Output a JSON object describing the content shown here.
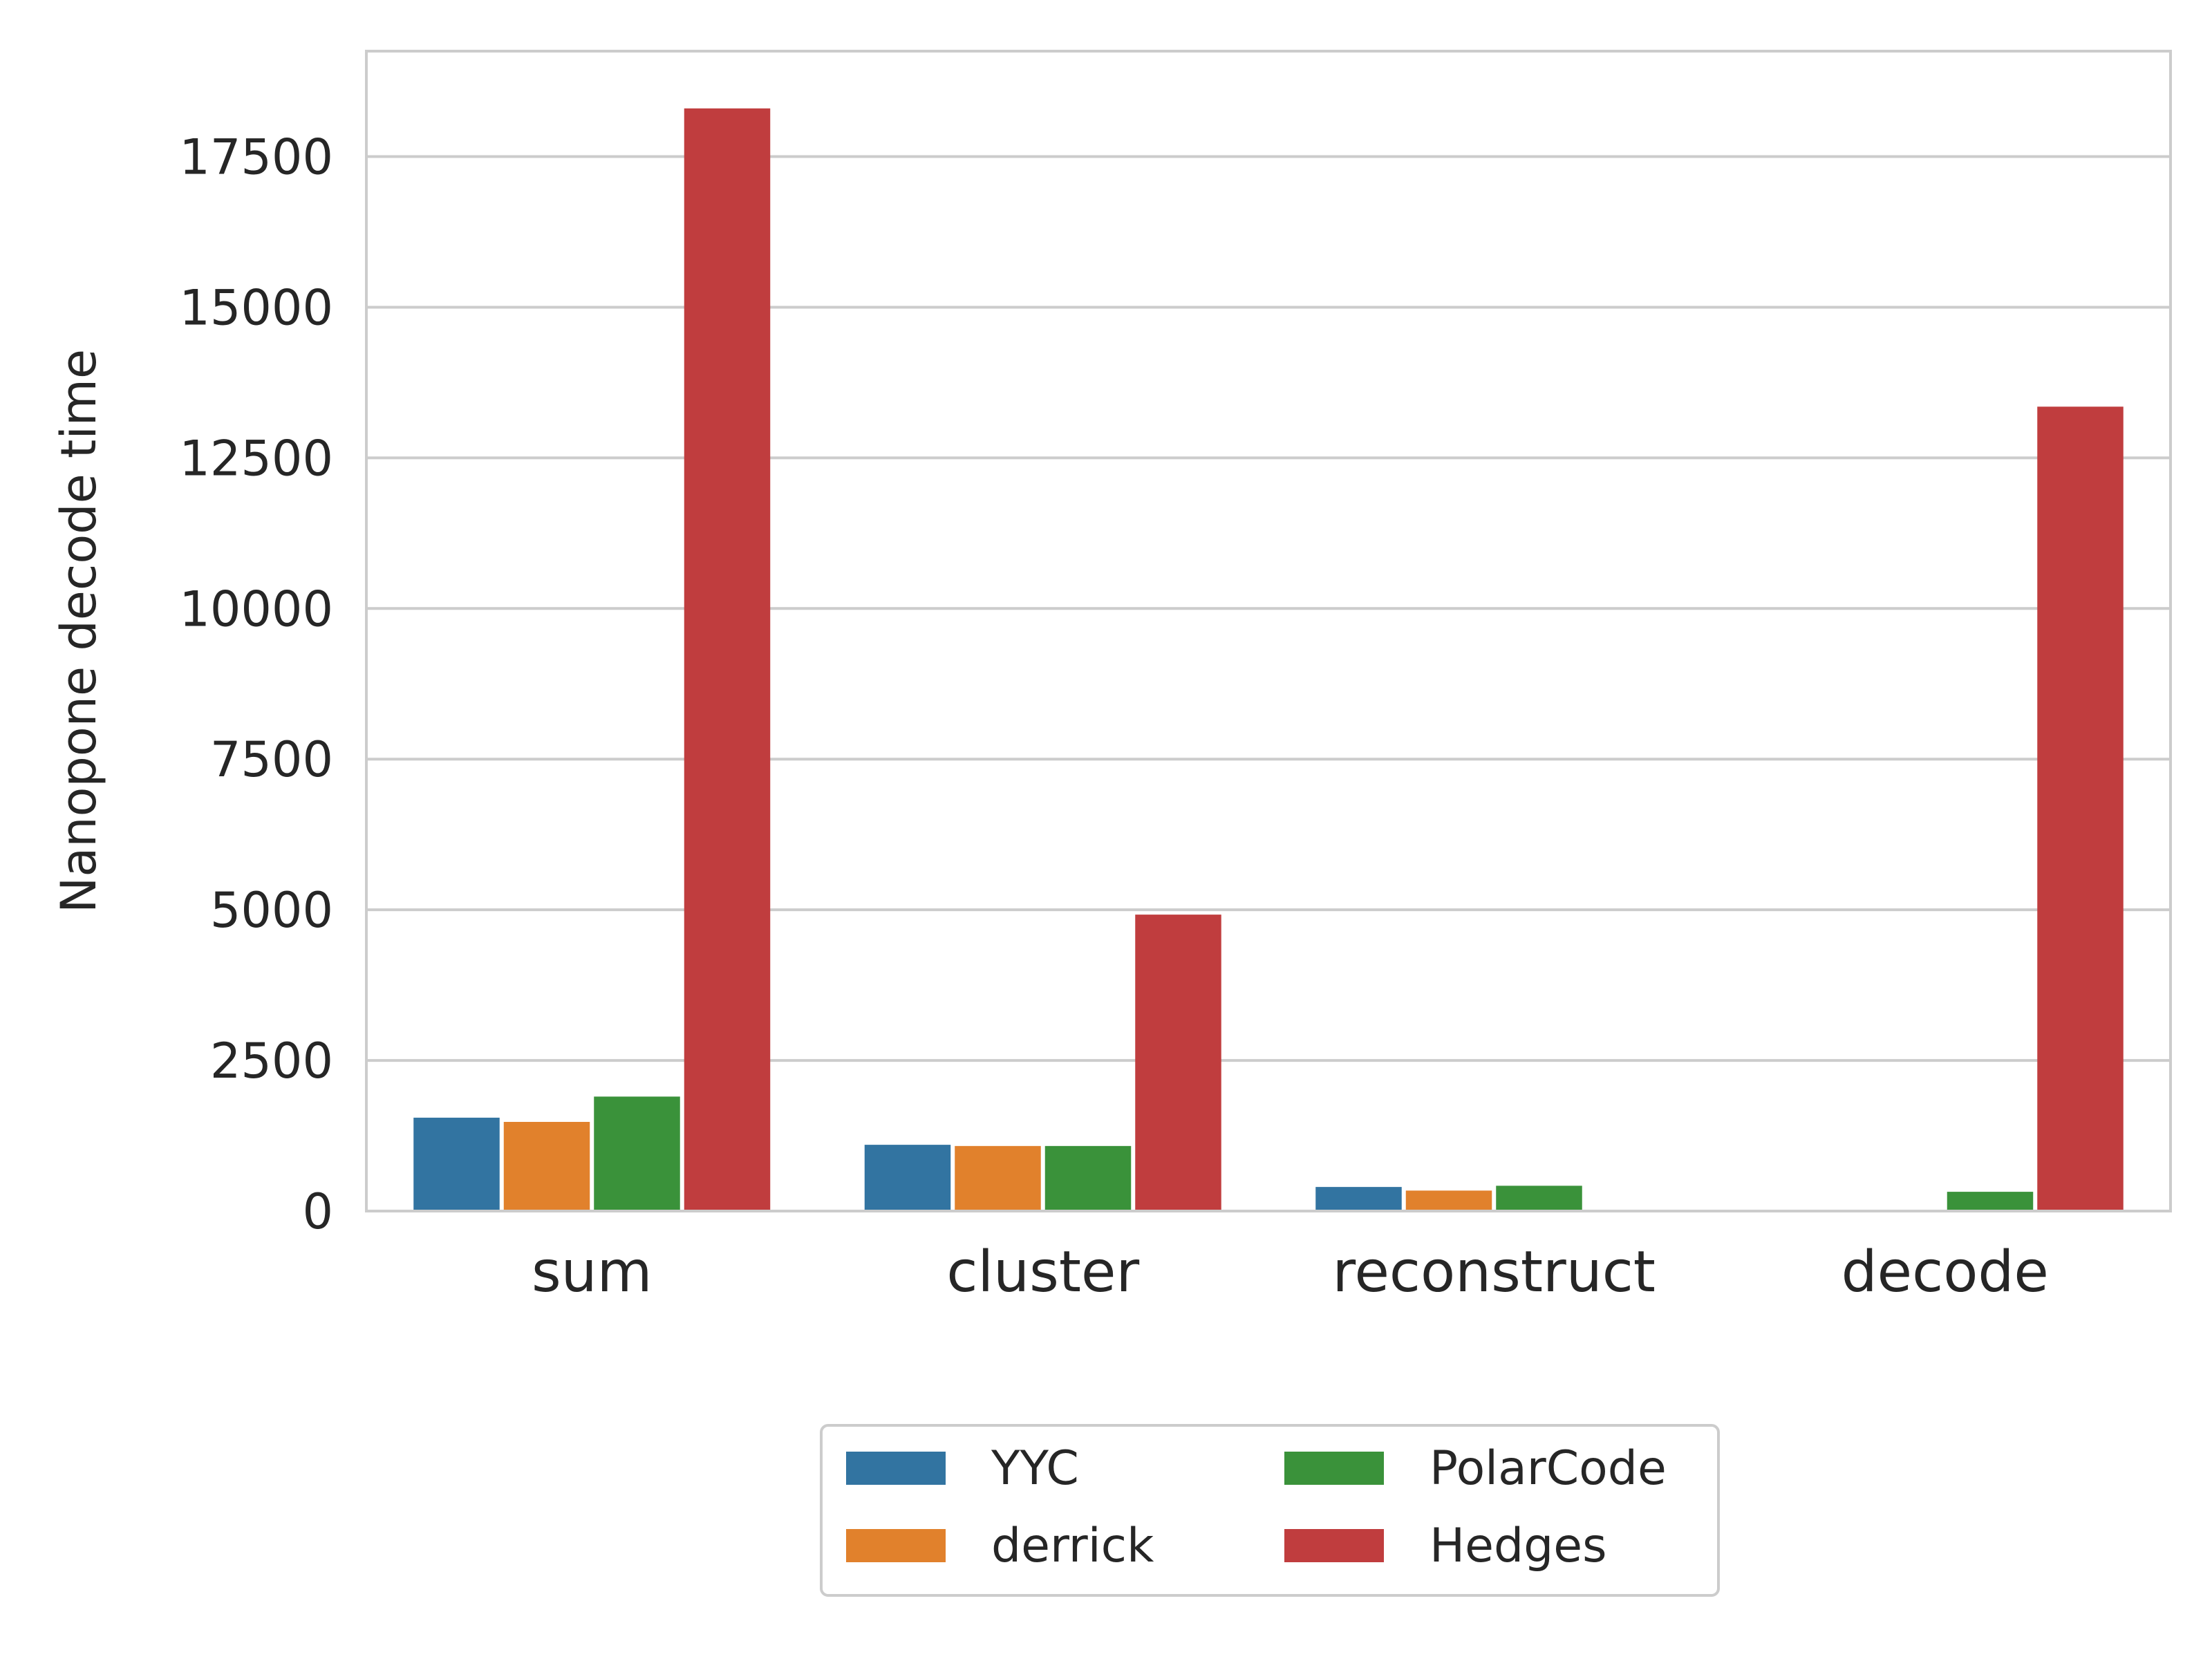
{
  "chart_data": {
    "type": "bar",
    "title": "",
    "xlabel": "",
    "ylabel": "Nanopone decode time",
    "categories": [
      "sum",
      "cluster",
      "reconstruct",
      "decode"
    ],
    "series": [
      {
        "name": "YYC",
        "color": "#3274a1",
        "values": [
          1550,
          1100,
          400,
          0
        ]
      },
      {
        "name": "derrick",
        "color": "#e1812c",
        "values": [
          1480,
          1080,
          340,
          0
        ]
      },
      {
        "name": "PolarCode",
        "color": "#3a923a",
        "values": [
          1900,
          1080,
          420,
          320
        ]
      },
      {
        "name": "Hedges",
        "color": "#c03d3e",
        "values": [
          18300,
          4920,
          0,
          13350
        ]
      }
    ],
    "ylim": [
      0,
      19250
    ],
    "yticks": [
      0,
      2500,
      5000,
      7500,
      10000,
      12500,
      15000,
      17500
    ],
    "grid": true,
    "legend_position": "bottom-center",
    "legend_columns": 2
  }
}
